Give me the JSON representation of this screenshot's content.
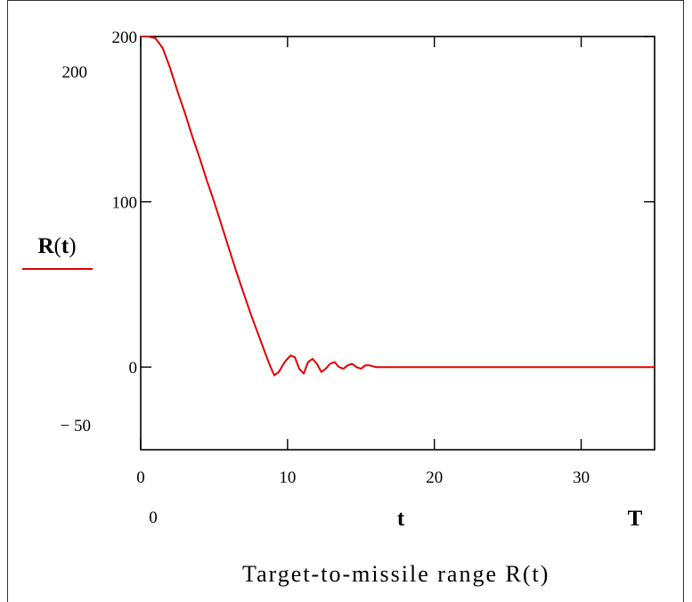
{
  "caption": "Target-to-missile range R(t)",
  "labels": {
    "y_lower": "− 50",
    "y_upper": "200",
    "x_lower": "0",
    "x_var": "t",
    "x_upper": "T"
  },
  "colors": {
    "series": "#e00000",
    "axis": "#000000"
  },
  "chart_data": {
    "type": "line",
    "xlim": [
      0,
      35
    ],
    "ylim": [
      -50,
      200
    ],
    "xticks": [
      0,
      10,
      20,
      30
    ],
    "yticks": [
      0,
      100,
      200
    ],
    "ylabel": "R(t)",
    "xlabel": "t",
    "grid": false,
    "series": [
      {
        "name": "R(t)",
        "color": "#e00000",
        "x": [
          0,
          0.5,
          1.0,
          1.5,
          2.0,
          2.5,
          3.0,
          3.5,
          4.0,
          4.5,
          5.0,
          5.5,
          6.0,
          6.5,
          7.0,
          7.5,
          8.0,
          8.5,
          8.8,
          9.1,
          9.4,
          9.8,
          10.2,
          10.5,
          10.8,
          11.1,
          11.4,
          11.7,
          12.0,
          12.3,
          12.6,
          12.9,
          13.2,
          13.5,
          13.8,
          14.1,
          14.4,
          14.7,
          15.0,
          15.3,
          15.6,
          16.0,
          20,
          25,
          30,
          35
        ],
        "y": [
          200,
          200,
          199,
          193,
          181,
          167,
          154,
          140,
          127,
          113,
          100,
          86,
          72,
          58,
          45,
          32,
          20,
          8,
          1,
          -5,
          -3,
          3,
          7,
          6,
          -1,
          -4,
          3,
          5,
          2,
          -3,
          -1,
          2,
          3,
          0,
          -1,
          1,
          2,
          0,
          -1,
          1,
          1,
          0,
          0,
          0,
          0,
          0
        ]
      }
    ]
  }
}
